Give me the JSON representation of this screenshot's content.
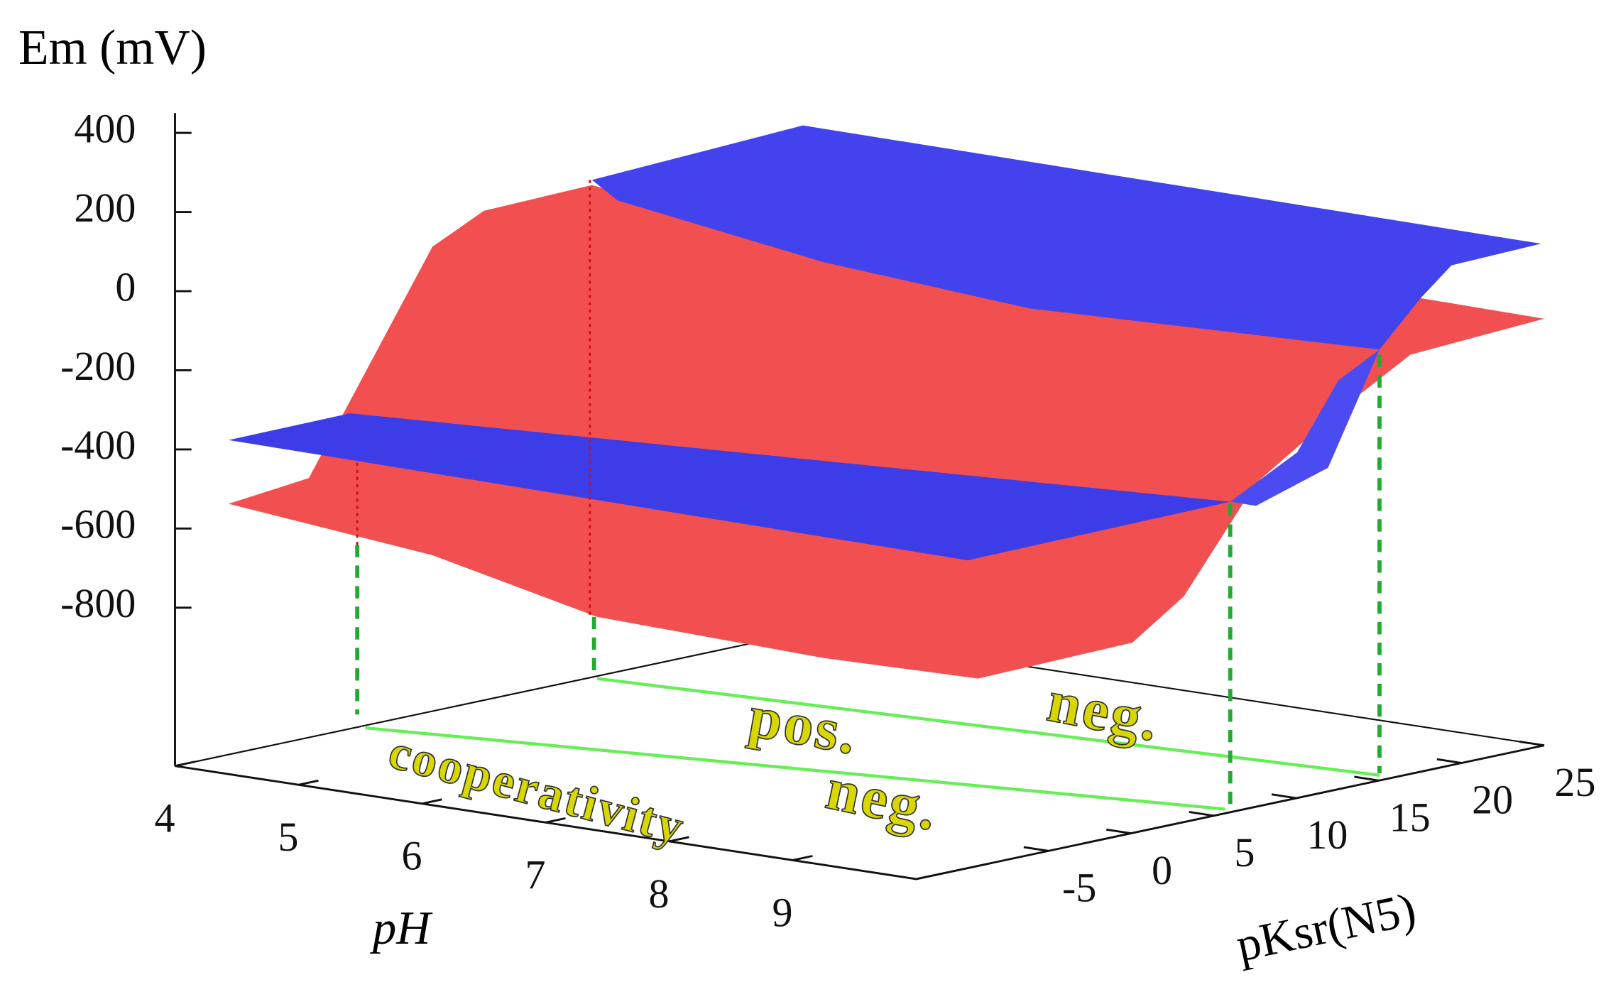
{
  "chart_data": {
    "type": "surface3d",
    "zlabel": "Em (mV)",
    "xlabel": "pH",
    "ylabel": "pKsr(N5)",
    "zlim": [
      -1200,
      450
    ],
    "zticks": [
      400,
      200,
      0,
      -200,
      -400,
      -600,
      -800
    ],
    "xlim": [
      4,
      10
    ],
    "xticks": [
      4,
      5,
      6,
      7,
      8,
      9
    ],
    "ylim": [
      -13,
      25
    ],
    "yticks": [
      -5,
      0,
      5,
      10,
      15,
      20,
      25
    ],
    "annotations": [
      "neg.",
      "pos.",
      "neg.",
      "cooperativity"
    ]
  }
}
